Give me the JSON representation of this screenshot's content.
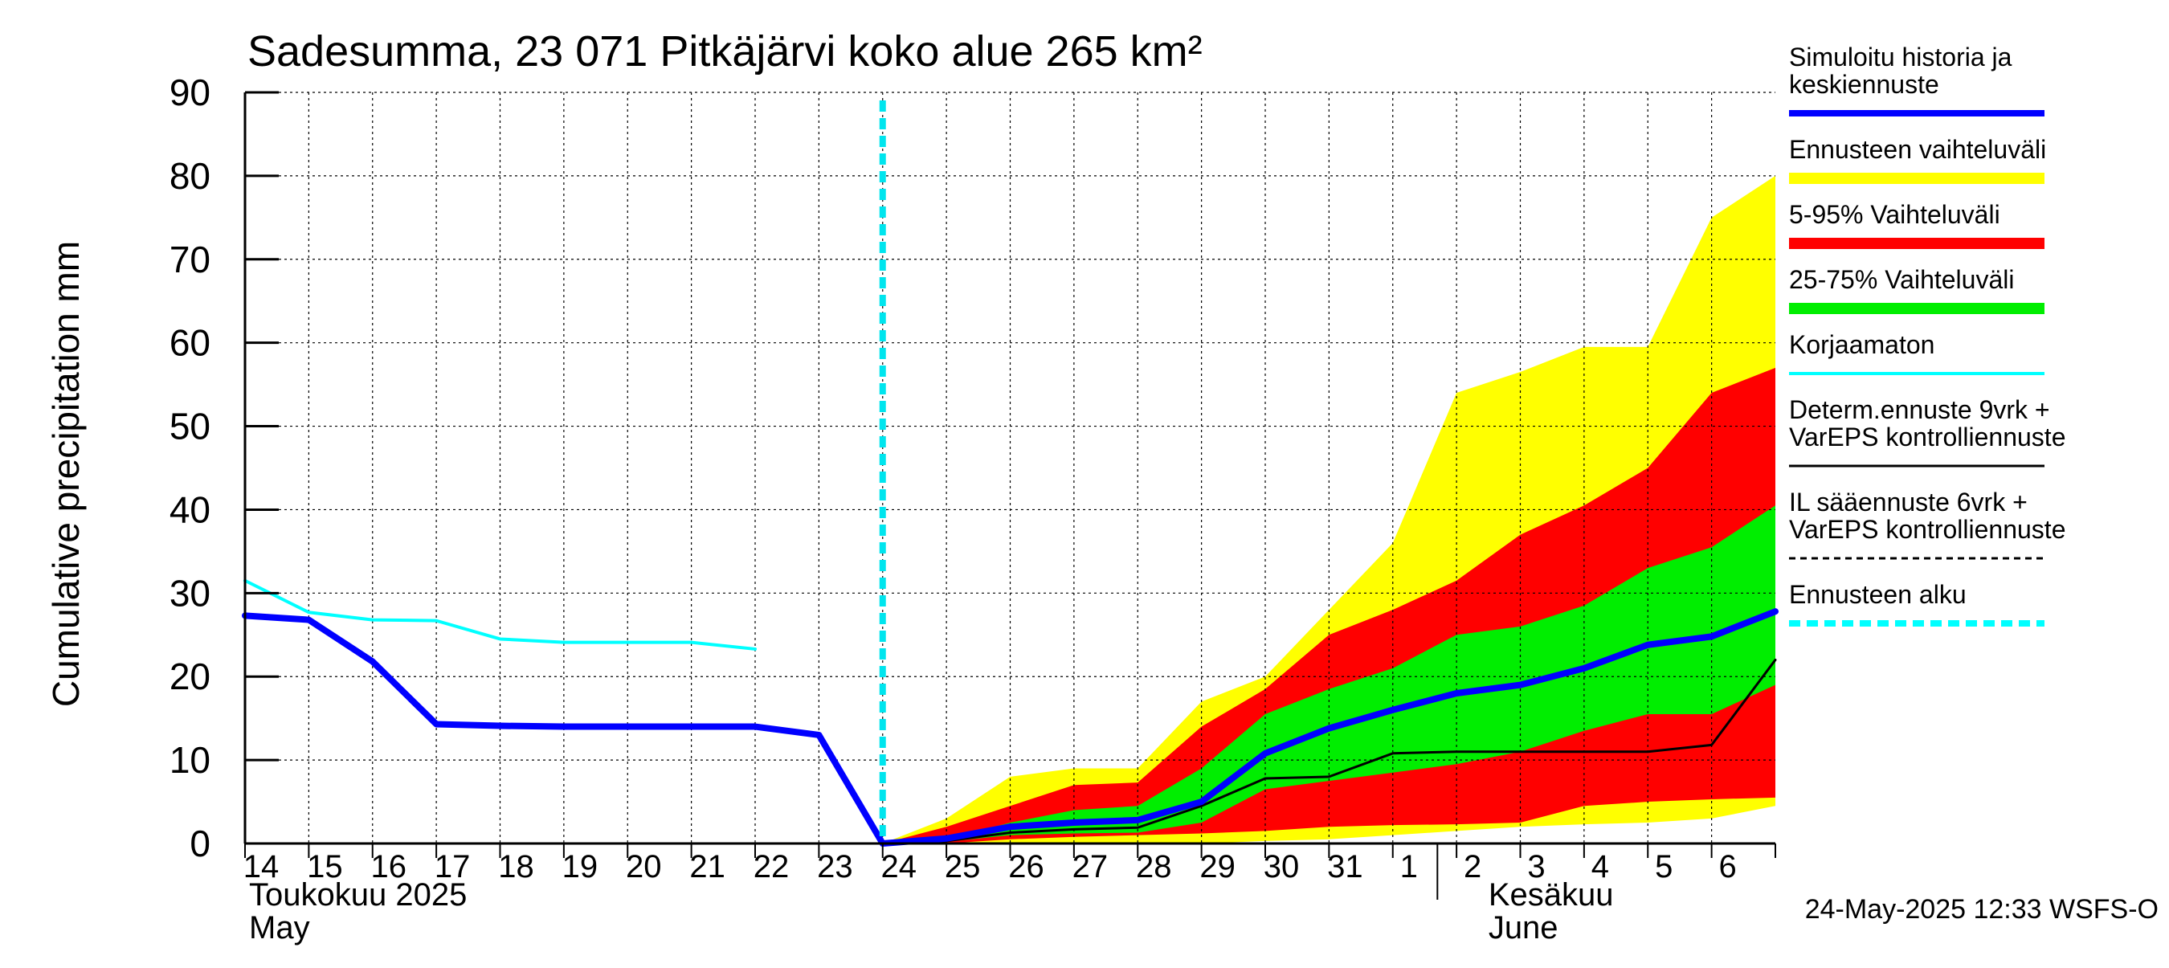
{
  "chart_data": {
    "type": "area",
    "title": "Sadesumma, 23 071 Pitkäjärvi koko alue 265 km²",
    "ylabel": "Cumulative precipitation   mm",
    "ylim": [
      0,
      90
    ],
    "yticks": [
      0,
      10,
      20,
      30,
      40,
      50,
      60,
      70,
      80,
      90
    ],
    "x_range": [
      0,
      24
    ],
    "x_tick_labels": [
      "14",
      "15",
      "16",
      "17",
      "18",
      "19",
      "20",
      "21",
      "22",
      "23",
      "24",
      "25",
      "26",
      "27",
      "28",
      "29",
      "30",
      "31",
      "1",
      "2",
      "3",
      "4",
      "5",
      "6"
    ],
    "month_labels": [
      {
        "line1": "Toukokuu  2025",
        "line2": "May",
        "x": 0
      },
      {
        "line1": "Kesäkuu",
        "line2": "June",
        "x": 19.5
      }
    ],
    "month_divider_x": 18.7,
    "forecast_start_x": 10.0,
    "footer": "24-May-2025 12:33 WSFS-O",
    "grid": true,
    "legend_position": "right",
    "bands": [
      {
        "name": "Ennusteen vaihteluväli",
        "color": "#ffff00",
        "x": [
          10,
          11,
          12,
          13,
          14,
          15,
          16,
          17,
          18,
          19,
          20,
          21,
          22,
          23,
          24
        ],
        "upper": [
          0,
          3,
          8,
          9,
          9,
          17,
          20,
          28,
          36,
          54,
          56.5,
          59.5,
          59.5,
          75,
          80
        ],
        "lower": [
          0,
          0,
          0,
          0,
          0,
          0,
          0.3,
          0.5,
          1,
          1.5,
          2,
          2.3,
          2.5,
          3,
          4.5
        ]
      },
      {
        "name": "5-95% Vaihteluväli",
        "color": "#ff0000",
        "x": [
          10,
          11,
          12,
          13,
          14,
          15,
          16,
          17,
          18,
          19,
          20,
          21,
          22,
          23,
          24
        ],
        "upper": [
          0,
          2,
          4.5,
          7,
          7.3,
          14,
          18.5,
          25,
          28,
          31.5,
          37,
          40.5,
          45,
          54,
          57
        ],
        "lower": [
          0,
          0,
          0.5,
          0.8,
          1,
          1.2,
          1.5,
          2,
          2.2,
          2.3,
          2.5,
          4.5,
          5,
          5.3,
          5.5
        ]
      },
      {
        "name": "25-75% Vaihteluväli",
        "color": "#00ee00",
        "x": [
          10,
          11,
          12,
          13,
          14,
          15,
          16,
          17,
          18,
          19,
          20,
          21,
          22,
          23,
          24
        ],
        "upper": [
          0,
          0.5,
          2.5,
          4,
          4.5,
          9,
          15.5,
          18.5,
          21,
          25,
          26,
          28.5,
          33,
          35.5,
          40.5
        ],
        "lower": [
          0,
          0.2,
          1,
          1.2,
          1.3,
          2.5,
          6.5,
          7.5,
          8.5,
          9.5,
          11,
          13.5,
          15.5,
          15.5,
          19
        ]
      }
    ],
    "series": [
      {
        "name": "Simuloitu historia ja keskiennuste",
        "color": "#0000ff",
        "width": 8,
        "x": [
          0,
          1,
          2,
          3,
          4,
          5,
          6,
          7,
          8,
          9,
          10,
          11,
          12,
          13,
          14,
          15,
          16,
          17,
          18,
          19,
          20,
          21,
          22,
          23,
          24
        ],
        "y": [
          27.3,
          26.8,
          21.8,
          14.3,
          14.1,
          14,
          14,
          14,
          14,
          13,
          0,
          0.6,
          2,
          2.5,
          2.8,
          5,
          10.8,
          13.8,
          16,
          18,
          19,
          21,
          23.8,
          24.8,
          27.8
        ]
      },
      {
        "name": "Korjaamaton",
        "color": "#00ffff",
        "width": 4,
        "x": [
          0,
          1,
          2,
          3,
          4,
          5,
          6,
          7,
          8
        ],
        "y": [
          31.5,
          27.7,
          26.8,
          26.7,
          24.5,
          24.1,
          24.1,
          24.1,
          23.3
        ]
      },
      {
        "name": "Determ.ennuste 9vrk + VarEPS kontrolliennuste",
        "color": "#000000",
        "width": 3,
        "x": [
          10,
          11,
          12,
          13,
          14,
          15,
          16,
          17,
          18,
          19,
          20,
          21,
          22,
          23,
          24
        ],
        "y": [
          0,
          0.3,
          1.3,
          1.7,
          1.9,
          4.5,
          7.8,
          8,
          10.8,
          11,
          11,
          11,
          11,
          11.8,
          22
        ]
      }
    ],
    "legend": [
      {
        "label_lines": [
          "Simuloitu historia ja",
          "keskiennuste"
        ],
        "kind": "line",
        "color": "#0000ff",
        "width": 8
      },
      {
        "label_lines": [
          "Ennusteen vaihteluväli"
        ],
        "kind": "line",
        "color": "#ffff00",
        "width": 14
      },
      {
        "label_lines": [
          "5-95% Vaihteluväli"
        ],
        "kind": "line",
        "color": "#ff0000",
        "width": 14
      },
      {
        "label_lines": [
          "25-75% Vaihteluväli"
        ],
        "kind": "line",
        "color": "#00ee00",
        "width": 14
      },
      {
        "label_lines": [
          "Korjaamaton"
        ],
        "kind": "line",
        "color": "#00ffff",
        "width": 4
      },
      {
        "label_lines": [
          "Determ.ennuste 9vrk +",
          "VarEPS kontrolliennuste"
        ],
        "kind": "line",
        "color": "#000000",
        "width": 3
      },
      {
        "label_lines": [
          "IL sääennuste 6vrk  +",
          "  VarEPS kontrolliennuste"
        ],
        "kind": "dashed",
        "color": "#000000",
        "width": 3
      },
      {
        "label_lines": [
          "Ennusteen alku"
        ],
        "kind": "dashed",
        "color": "#00ffff",
        "width": 8
      }
    ]
  }
}
